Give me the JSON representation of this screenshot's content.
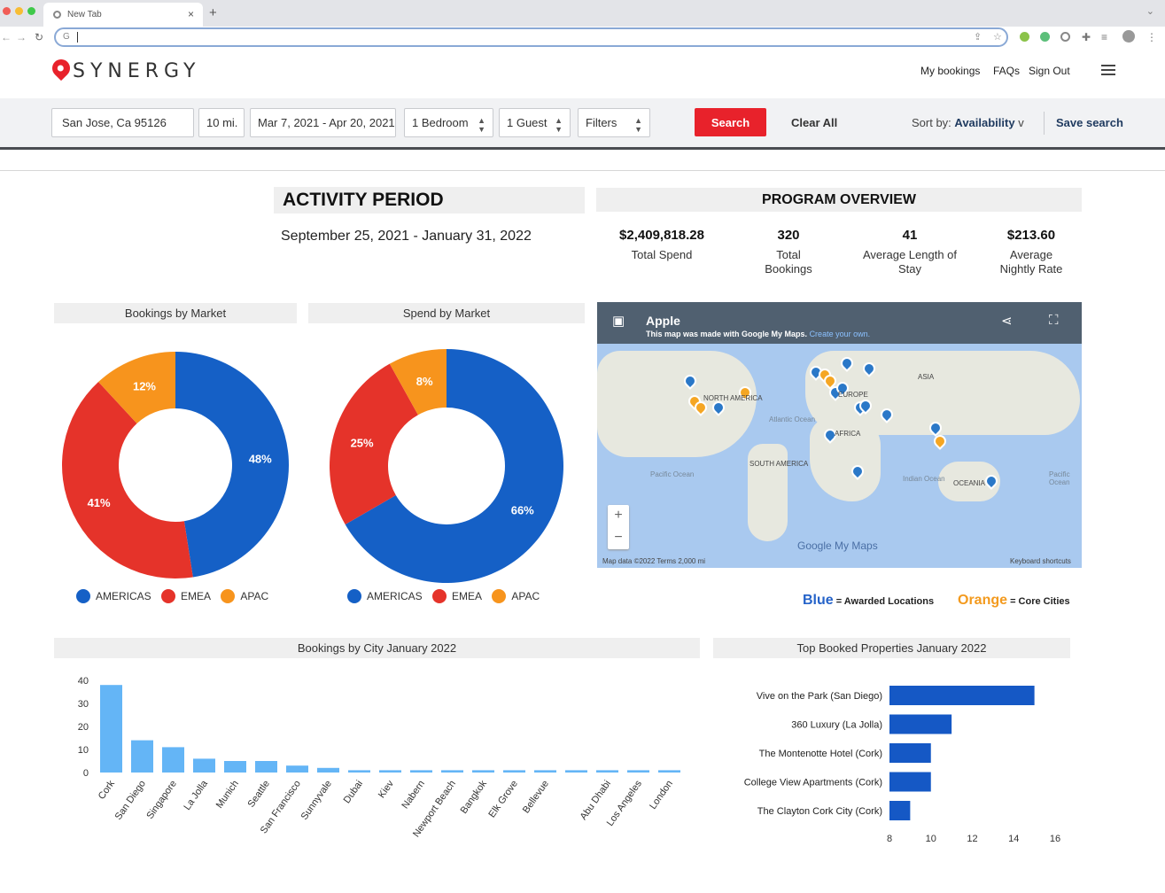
{
  "browser": {
    "tab_title": "New Tab",
    "new_tab_symbol": "+",
    "close_symbol": "×",
    "url_prefix": "G"
  },
  "header": {
    "logo": "SYNERGY",
    "links": [
      "My bookings",
      "FAQs",
      "Sign Out"
    ]
  },
  "search": {
    "location": "San Jose, Ca 95126",
    "distance": "10 mi.",
    "dates": "Mar 7, 2021 - Apr 20, 2021",
    "bedrooms": "1 Bedroom",
    "guests": "1 Guest",
    "filters": "Filters",
    "search_label": "Search",
    "clear_label": "Clear All",
    "sort_prefix": "Sort by:",
    "sort_value": "Availability",
    "sort_arrow": "v",
    "save_label": "Save search"
  },
  "activity": {
    "title": "ACTIVITY PERIOD",
    "dates": "September 25, 2021 - January 31, 2022"
  },
  "overview": {
    "title": "PROGRAM OVERVIEW",
    "stats": [
      {
        "value": "$2,409,818.28",
        "label": "Total Spend"
      },
      {
        "value": "320",
        "label": "Total Bookings"
      },
      {
        "value": "41",
        "label": "Average Length of Stay"
      },
      {
        "value": "$213.60",
        "label": "Average Nightly Rate"
      }
    ]
  },
  "map": {
    "title": "Apple",
    "subtitle": "This map was made with Google My Maps.",
    "subtitle_link": "Create your own.",
    "zoom_in": "+",
    "zoom_out": "−",
    "attribution": "Map data ©2022   Terms   2,000 mi",
    "shortcuts": "Keyboard shortcuts",
    "brand": "Google My Maps",
    "labels": [
      "NORTH AMERICA",
      "SOUTH AMERICA",
      "AFRICA",
      "EUROPE",
      "ASIA",
      "OCEANIA",
      "Atlantic Ocean",
      "Pacific Ocean",
      "Indian Ocean",
      "Pacific Ocean"
    ],
    "legend_blue": "Blue",
    "legend_blue_text": "= Awarded Locations",
    "legend_orange": "Orange",
    "legend_orange_text": "= Core Cities"
  },
  "colors": {
    "americas": "#1560c6",
    "emea": "#e5332a",
    "apac": "#f7941d",
    "bar_light": "#64b5f6",
    "bar_dark": "#1558c5",
    "brand_red": "#e8222b"
  },
  "chart_data": [
    {
      "type": "pie",
      "title": "Bookings by Market",
      "categories": [
        "AMERICAS",
        "EMEA",
        "APAC"
      ],
      "values": [
        48,
        41,
        12
      ],
      "labels": [
        "48%",
        "41%",
        "12%"
      ]
    },
    {
      "type": "pie",
      "title": "Spend by Market",
      "categories": [
        "AMERICAS",
        "EMEA",
        "APAC"
      ],
      "values": [
        66,
        25,
        8
      ],
      "labels": [
        "66%",
        "25%",
        "8%"
      ]
    },
    {
      "type": "bar",
      "title": "Bookings by City January 2022",
      "categories": [
        "Cork",
        "San Diego",
        "Singapore",
        "La Jolla",
        "Munich",
        "Seattle",
        "San Francisco",
        "Sunnyvale",
        "Dubai",
        "Kiev",
        "Nabern",
        "Newport Beach",
        "Bangkok",
        "Elk Grove",
        "Bellevue",
        "",
        "Abu Dhabi",
        "Los Angeles",
        "London"
      ],
      "values": [
        38,
        14,
        11,
        6,
        5,
        5,
        3,
        2,
        1,
        1,
        1,
        1,
        1,
        1,
        1,
        1,
        1,
        1,
        1
      ],
      "yticks": [
        "0",
        "10",
        "20",
        "30",
        "40"
      ],
      "ylim": [
        0,
        40
      ]
    },
    {
      "type": "bar",
      "title": "Top Booked Properties January 2022",
      "orientation": "horizontal",
      "categories": [
        "Vive on the Park (San Diego)",
        "360 Luxury (La Jolla)",
        "The Montenotte Hotel (Cork)",
        "College View Apartments (Cork)",
        "The Clayton Cork City (Cork)"
      ],
      "values": [
        15,
        11,
        10,
        10,
        9
      ],
      "xticks": [
        "8",
        "10",
        "12",
        "14",
        "16"
      ],
      "xlim": [
        8,
        16
      ]
    }
  ]
}
